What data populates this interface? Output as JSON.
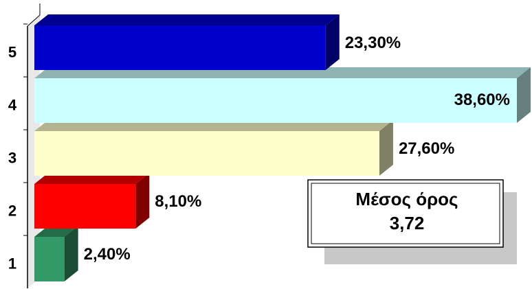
{
  "chart_data": {
    "type": "bar3d_horizontal",
    "categories": [
      "1",
      "2",
      "3",
      "4",
      "5"
    ],
    "values": [
      2.4,
      8.1,
      27.6,
      38.6,
      23.3
    ],
    "value_labels": [
      "2,40%",
      "8,10%",
      "27,60%",
      "38,60%",
      "23,30%"
    ],
    "colors": [
      "#339966",
      "#ff0000",
      "#ffffcc",
      "#ccffff",
      "#0000cc"
    ],
    "annotation": {
      "title": "Μέσος όρος",
      "value": "3,72"
    }
  }
}
